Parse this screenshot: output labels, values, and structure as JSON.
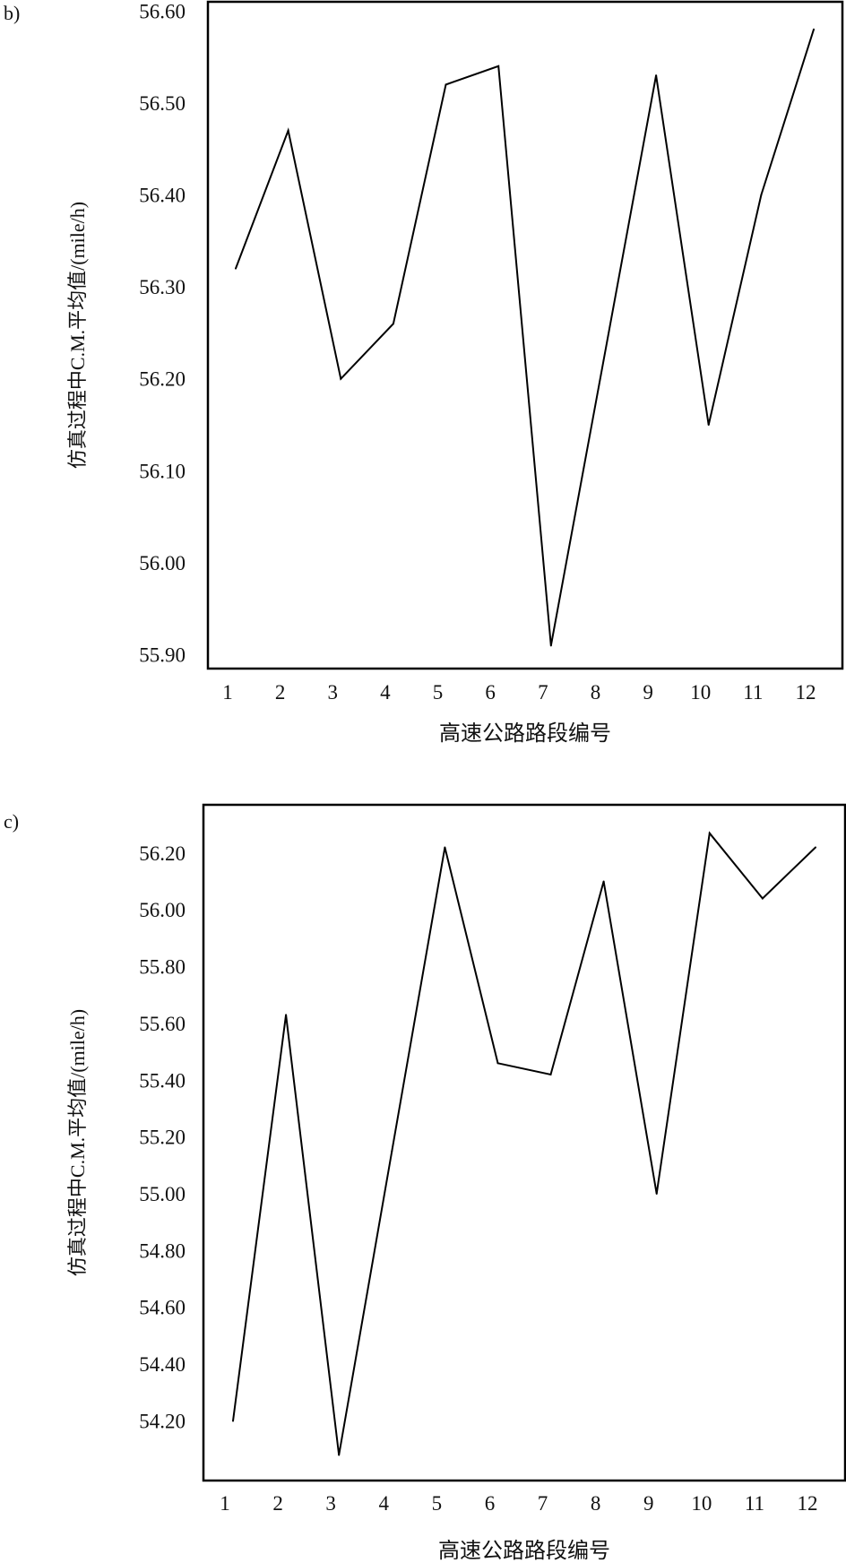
{
  "chart_data": [
    {
      "type": "line",
      "panel_label": "b)",
      "xlabel": "高速公路路段编号",
      "ylabel": "仿真过程中C.M.平均值/(mile/h)",
      "categories": [
        "1",
        "2",
        "3",
        "4",
        "5",
        "6",
        "7",
        "8",
        "9",
        "10",
        "11",
        "12"
      ],
      "values": [
        56.32,
        56.47,
        56.2,
        56.26,
        56.52,
        56.54,
        55.91,
        56.22,
        56.53,
        56.15,
        56.4,
        56.58
      ],
      "yticks": [
        "56.60",
        "56.50",
        "56.40",
        "56.30",
        "56.20",
        "56.10",
        "56.00",
        "55.90"
      ],
      "ylim": [
        55.885,
        56.61
      ],
      "grid": false,
      "line_color": "#000000"
    },
    {
      "type": "line",
      "panel_label": "c)",
      "xlabel": "高速公路路段编号",
      "ylabel": "仿真过程中C.M.平均值/(mile/h)",
      "categories": [
        "1",
        "2",
        "3",
        "4",
        "5",
        "6",
        "7",
        "8",
        "9",
        "10",
        "11",
        "12"
      ],
      "values": [
        54.2,
        55.63,
        54.08,
        55.15,
        56.22,
        55.46,
        55.42,
        56.1,
        55.0,
        56.27,
        56.04,
        56.22
      ],
      "yticks": [
        "56.20",
        "56.00",
        "55.80",
        "55.60",
        "55.40",
        "55.20",
        "55.00",
        "54.80",
        "54.60",
        "54.40",
        "54.20"
      ],
      "ylim": [
        53.99,
        56.37
      ],
      "grid": false,
      "line_color": "#000000"
    }
  ]
}
